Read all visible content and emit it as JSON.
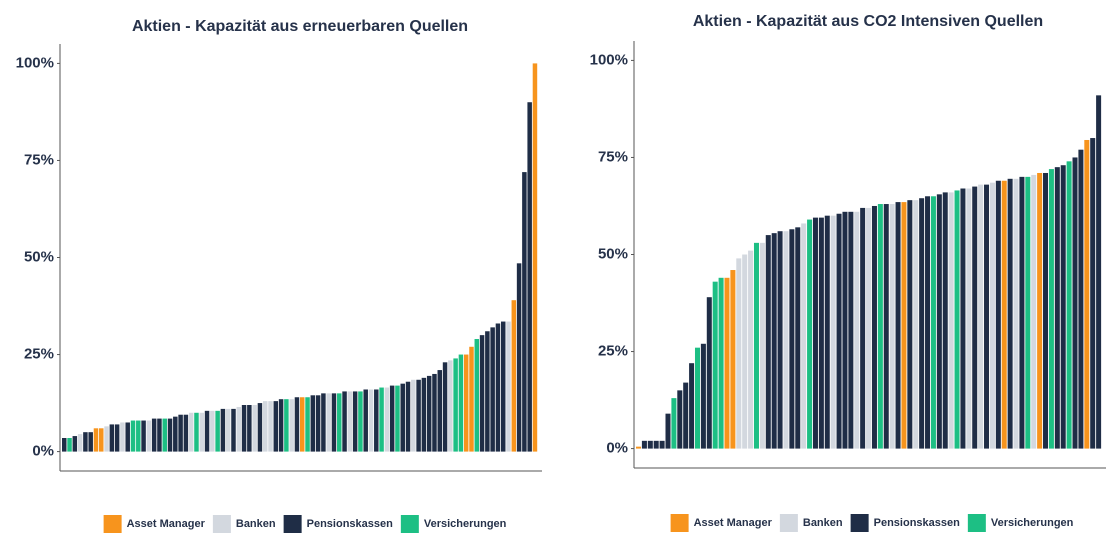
{
  "chart_data": [
    {
      "type": "bar",
      "title": "Aktien - Kapazität aus erneuerbaren Quellen",
      "categories": [
        null,
        null,
        null,
        null,
        null,
        null,
        null,
        null,
        null,
        null,
        null,
        null,
        null,
        null,
        null,
        null,
        null,
        null,
        null,
        null,
        null,
        null,
        null,
        null,
        null,
        null,
        null,
        null,
        null,
        null,
        null,
        null,
        null,
        null,
        null,
        null,
        null,
        null,
        null,
        null,
        null,
        null,
        null,
        null,
        null,
        null,
        null,
        null,
        null,
        null,
        null,
        null,
        null,
        null,
        null,
        null,
        null,
        null,
        null,
        null,
        null,
        null,
        null,
        null,
        null,
        null,
        null,
        null,
        null,
        null,
        null,
        null,
        null,
        null,
        null,
        null,
        null,
        null,
        null,
        null,
        null,
        null,
        null,
        null,
        null,
        null,
        null,
        null,
        null,
        null
      ],
      "series": [
        {
          "name": "Asset Manager",
          "color": "#f7941d",
          "values": [
            null,
            null,
            null,
            null,
            null,
            null,
            6,
            6,
            null,
            null,
            null,
            null,
            null,
            null,
            null,
            null,
            null,
            null,
            null,
            null,
            null,
            null,
            null,
            null,
            null,
            null,
            null,
            null,
            null,
            null,
            null,
            null,
            null,
            null,
            null,
            null,
            null,
            null,
            null,
            null,
            null,
            null,
            null,
            null,
            null,
            14,
            null,
            null,
            null,
            null,
            null,
            null,
            null,
            null,
            null,
            null,
            null,
            null,
            null,
            null,
            null,
            null,
            null,
            null,
            null,
            null,
            null,
            null,
            null,
            null,
            null,
            null,
            null,
            null,
            null,
            null,
            25,
            27,
            null,
            null,
            null,
            null,
            null,
            null,
            null,
            39,
            null,
            null,
            null,
            100
          ]
        },
        {
          "name": "Banken",
          "color": "#d3d8df",
          "values": [
            null,
            null,
            null,
            4.5,
            null,
            null,
            null,
            null,
            6.5,
            null,
            null,
            7.5,
            null,
            null,
            null,
            null,
            8,
            null,
            null,
            null,
            null,
            null,
            null,
            null,
            10,
            null,
            10,
            null,
            10.5,
            null,
            null,
            11,
            null,
            11.5,
            null,
            null,
            12,
            null,
            13,
            13,
            null,
            null,
            null,
            13.5,
            null,
            null,
            null,
            null,
            null,
            null,
            15,
            null,
            null,
            null,
            15.5,
            null,
            null,
            null,
            16,
            null,
            null,
            16.5,
            null,
            null,
            null,
            null,
            18.5,
            null,
            null,
            null,
            null,
            null,
            null,
            23.5,
            null,
            null,
            null,
            null,
            null,
            null,
            null,
            null,
            null,
            null,
            33.5,
            null,
            null,
            null,
            null,
            null
          ]
        },
        {
          "name": "Pensionskassen",
          "color": "#1f2d46",
          "values": [
            3.5,
            null,
            4,
            null,
            5,
            5,
            null,
            null,
            null,
            7,
            7,
            null,
            7.5,
            null,
            null,
            8,
            null,
            8.5,
            8.5,
            null,
            8.5,
            9,
            9.5,
            9.5,
            null,
            null,
            null,
            10.5,
            null,
            null,
            11,
            null,
            11,
            null,
            12,
            12,
            null,
            12.5,
            null,
            null,
            13,
            13.5,
            null,
            null,
            14,
            null,
            null,
            14.5,
            14.5,
            15,
            null,
            15,
            null,
            15.5,
            null,
            15.5,
            null,
            16,
            null,
            16,
            null,
            null,
            17,
            null,
            17.5,
            18,
            null,
            18.5,
            19,
            19.5,
            20,
            21,
            23,
            null,
            null,
            null,
            null,
            null,
            null,
            30,
            31,
            32,
            33,
            33.5,
            null,
            null,
            48.5,
            72,
            90,
            null
          ]
        },
        {
          "name": "Versicherungen",
          "color": "#1dbf84",
          "values": [
            null,
            3.5,
            null,
            null,
            null,
            null,
            null,
            null,
            null,
            null,
            null,
            null,
            null,
            8,
            8,
            null,
            null,
            null,
            null,
            8.5,
            null,
            null,
            null,
            null,
            null,
            10,
            null,
            null,
            null,
            10.5,
            null,
            null,
            null,
            null,
            null,
            null,
            null,
            null,
            null,
            null,
            null,
            null,
            13.5,
            null,
            null,
            null,
            14,
            null,
            null,
            null,
            null,
            null,
            15,
            null,
            null,
            null,
            15.5,
            null,
            null,
            null,
            16.5,
            null,
            null,
            17,
            null,
            null,
            null,
            null,
            null,
            null,
            null,
            null,
            null,
            null,
            24,
            25,
            null,
            null,
            29,
            null,
            null,
            null,
            null,
            null,
            null,
            null,
            null,
            null,
            null,
            null
          ]
        }
      ],
      "ylim": [
        -5,
        105
      ],
      "yticks": [
        {
          "value": 0,
          "label": "0%"
        },
        {
          "value": 25,
          "label": "25%"
        },
        {
          "value": 50,
          "label": "50%"
        },
        {
          "value": 75,
          "label": "75%"
        },
        {
          "value": 100,
          "label": "100%"
        }
      ],
      "grid": false,
      "legend": "bottom"
    },
    {
      "type": "bar",
      "title": "Aktien - Kapazität aus CO2 Intensiven Quellen",
      "categories": [
        null,
        null,
        null,
        null,
        null,
        null,
        null,
        null,
        null,
        null,
        null,
        null,
        null,
        null,
        null,
        null,
        null,
        null,
        null,
        null,
        null,
        null,
        null,
        null,
        null,
        null,
        null,
        null,
        null,
        null,
        null,
        null,
        null,
        null,
        null,
        null,
        null,
        null,
        null,
        null,
        null,
        null,
        null,
        null,
        null,
        null,
        null,
        null,
        null,
        null,
        null,
        null,
        null,
        null,
        null,
        null,
        null,
        null,
        null,
        null,
        null,
        null,
        null,
        null,
        null,
        null,
        null,
        null,
        null,
        null,
        null,
        null,
        null,
        null,
        null,
        null,
        null,
        null,
        null
      ],
      "series": [
        {
          "name": "Asset Manager",
          "color": "#f7941d",
          "values": [
            0.5,
            null,
            null,
            null,
            null,
            null,
            null,
            null,
            null,
            null,
            null,
            null,
            null,
            null,
            null,
            44,
            46,
            null,
            null,
            null,
            null,
            null,
            null,
            null,
            null,
            null,
            null,
            null,
            null,
            null,
            null,
            null,
            null,
            null,
            null,
            null,
            null,
            null,
            null,
            null,
            null,
            null,
            null,
            null,
            null,
            63.5,
            null,
            null,
            null,
            null,
            null,
            null,
            null,
            null,
            null,
            null,
            null,
            null,
            null,
            null,
            null,
            null,
            69,
            null,
            null,
            null,
            null,
            null,
            71,
            null,
            null,
            null,
            null,
            null,
            null,
            null,
            79.5,
            null,
            null
          ]
        },
        {
          "name": "Banken",
          "color": "#d3d8df",
          "values": [
            null,
            null,
            null,
            null,
            null,
            null,
            null,
            null,
            null,
            null,
            null,
            null,
            null,
            null,
            null,
            null,
            null,
            49,
            50,
            51,
            null,
            53,
            null,
            null,
            null,
            56,
            null,
            null,
            58,
            null,
            null,
            null,
            null,
            60,
            null,
            null,
            null,
            61,
            null,
            62,
            null,
            null,
            null,
            63,
            null,
            null,
            null,
            64,
            null,
            null,
            null,
            null,
            null,
            66,
            null,
            null,
            67,
            null,
            68,
            null,
            68.5,
            null,
            null,
            null,
            69.5,
            null,
            null,
            70.5,
            null,
            null,
            null,
            null,
            null,
            null,
            null,
            null,
            null,
            null,
            null
          ]
        },
        {
          "name": "Pensionskassen",
          "color": "#1f2d46",
          "values": [
            null,
            2,
            2,
            2,
            2,
            9,
            null,
            15,
            17,
            22,
            null,
            27,
            39,
            null,
            null,
            null,
            null,
            null,
            null,
            null,
            null,
            null,
            55,
            55.5,
            56,
            null,
            56.5,
            57,
            null,
            null,
            59.5,
            59.5,
            60,
            null,
            60.5,
            61,
            61,
            null,
            62,
            null,
            62.5,
            null,
            63,
            null,
            63.5,
            null,
            64,
            null,
            64.5,
            65,
            null,
            65.5,
            66,
            null,
            null,
            67,
            null,
            67.5,
            null,
            68,
            null,
            69,
            null,
            69.5,
            null,
            70,
            null,
            null,
            null,
            71,
            null,
            72.5,
            73,
            null,
            75,
            77,
            null,
            80,
            91
          ]
        },
        {
          "name": "Versicherungen",
          "color": "#1dbf84",
          "values": [
            null,
            null,
            null,
            null,
            null,
            null,
            13,
            null,
            null,
            null,
            26,
            null,
            null,
            43,
            44,
            null,
            null,
            null,
            null,
            null,
            53,
            null,
            null,
            null,
            null,
            null,
            null,
            null,
            null,
            59,
            null,
            null,
            null,
            null,
            null,
            null,
            null,
            null,
            null,
            null,
            null,
            63,
            null,
            null,
            null,
            null,
            null,
            null,
            null,
            null,
            65,
            null,
            null,
            null,
            66.5,
            null,
            null,
            null,
            null,
            null,
            null,
            null,
            null,
            null,
            null,
            null,
            70,
            null,
            null,
            null,
            72,
            null,
            null,
            74,
            null,
            null,
            null,
            null,
            null
          ]
        }
      ],
      "ylim": [
        -5,
        105
      ],
      "yticks": [
        {
          "value": 0,
          "label": "0%"
        },
        {
          "value": 25,
          "label": "25%"
        },
        {
          "value": 50,
          "label": "50%"
        },
        {
          "value": 75,
          "label": "75%"
        },
        {
          "value": 100,
          "label": "100%"
        }
      ],
      "grid": false,
      "legend": "bottom"
    }
  ]
}
